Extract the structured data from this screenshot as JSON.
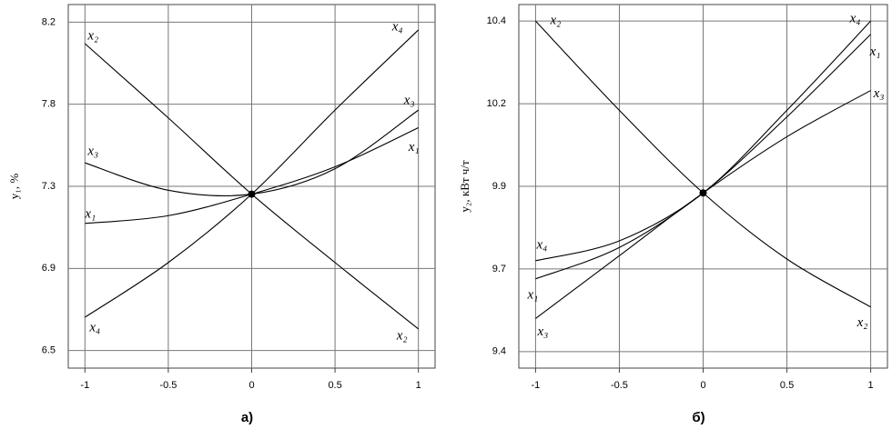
{
  "chart_data": [
    {
      "type": "line",
      "caption": "а)",
      "ylabel": "y₁, %",
      "x": [
        -1,
        -0.5,
        0,
        0.5,
        1
      ],
      "xlim": [
        -1.1,
        1.1
      ],
      "xticks": [
        -1,
        -0.5,
        0,
        0.5,
        1
      ],
      "ylim": [
        6.41,
        8.27
      ],
      "yticks": [
        {
          "value": 6.5,
          "label": "6.5"
        },
        {
          "value": 6.92,
          "label": "6.9"
        },
        {
          "value": 7.34,
          "label": "7.3"
        },
        {
          "value": 7.76,
          "label": "7.8"
        },
        {
          "value": 8.18,
          "label": "8.2"
        }
      ],
      "grid": true,
      "series": [
        {
          "name": "x₁",
          "color": "#000000",
          "values": [
            7.15,
            7.19,
            7.3,
            7.44,
            7.64
          ]
        },
        {
          "name": "x₂",
          "color": "#000000",
          "values": [
            8.07,
            7.69,
            7.3,
            6.95,
            6.61
          ]
        },
        {
          "name": "x₃",
          "color": "#000000",
          "values": [
            7.46,
            7.32,
            7.3,
            7.43,
            7.73
          ]
        },
        {
          "name": "x₄",
          "color": "#000000",
          "values": [
            6.67,
            6.95,
            7.3,
            7.73,
            8.14
          ]
        }
      ]
    },
    {
      "type": "line",
      "caption": "б)",
      "ylabel": "y₂, кВт ч/т",
      "x": [
        -1,
        -0.5,
        0,
        0.5,
        1
      ],
      "xlim": [
        -1.1,
        1.1
      ],
      "xticks": [
        -1,
        -0.5,
        0,
        0.5,
        1
      ],
      "ylim": [
        9.35,
        10.45
      ],
      "yticks": [
        {
          "value": 9.4,
          "label": "9.4"
        },
        {
          "value": 9.65,
          "label": "9.7"
        },
        {
          "value": 9.9,
          "label": "9.9"
        },
        {
          "value": 10.15,
          "label": "10.2"
        },
        {
          "value": 10.4,
          "label": "10.4"
        }
      ],
      "grid": true,
      "series": [
        {
          "name": "x₁",
          "color": "#000000",
          "values": [
            9.62,
            9.715,
            9.88,
            10.11,
            10.36
          ]
        },
        {
          "name": "x₂",
          "color": "#000000",
          "values": [
            10.4,
            10.13,
            9.88,
            9.68,
            9.535
          ]
        },
        {
          "name": "x₃",
          "color": "#000000",
          "values": [
            9.5,
            9.69,
            9.88,
            10.05,
            10.19
          ]
        },
        {
          "name": "x₄",
          "color": "#000000",
          "values": [
            9.675,
            9.735,
            9.88,
            10.13,
            10.4
          ]
        }
      ]
    }
  ]
}
